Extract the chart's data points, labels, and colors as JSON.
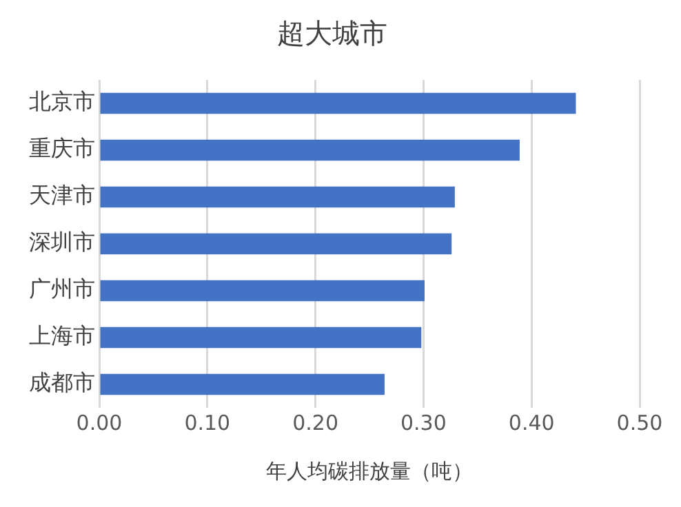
{
  "chart_data": {
    "type": "bar",
    "orientation": "horizontal",
    "title": "超大城市",
    "xlabel": "年人均碳排放量（吨）",
    "categories": [
      "北京市",
      "重庆市",
      "天津市",
      "深圳市",
      "广州市",
      "上海市",
      "成都市"
    ],
    "values": [
      0.441,
      0.389,
      0.329,
      0.326,
      0.301,
      0.298,
      0.264
    ],
    "color": "#4472c4",
    "xlim": [
      0,
      0.5
    ],
    "xticks": [
      {
        "value": 0,
        "label": "0.00"
      },
      {
        "value": 0.1,
        "label": "0.10"
      },
      {
        "value": 0.2,
        "label": "0.20"
      },
      {
        "value": 0.3,
        "label": "0.30"
      },
      {
        "value": 0.4,
        "label": "0.40"
      },
      {
        "value": 0.5,
        "label": "0.50"
      }
    ],
    "grid": "x"
  }
}
